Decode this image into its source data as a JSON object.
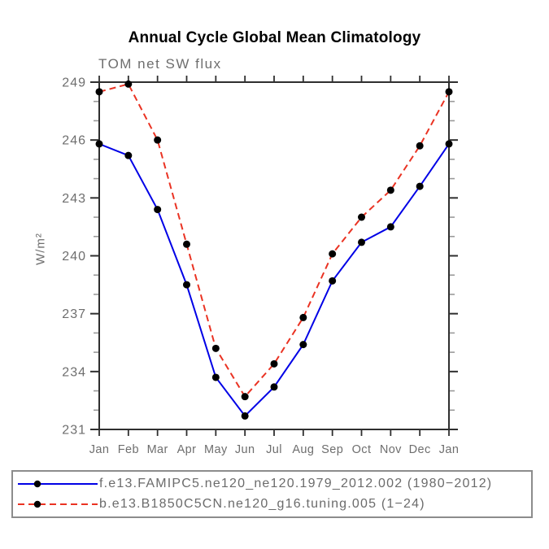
{
  "chart_data": {
    "type": "line",
    "title": "Annual Cycle Global Mean Climatology",
    "subtitle": "TOM net SW flux",
    "ylabel": "W/m²",
    "xlabel": "",
    "categories": [
      "Jan",
      "Feb",
      "Mar",
      "Apr",
      "May",
      "Jun",
      "Jul",
      "Aug",
      "Sep",
      "Oct",
      "Nov",
      "Dec",
      "Jan"
    ],
    "ylim": [
      231,
      249
    ],
    "ytick_major_step": 3,
    "ytick_minor_step": 1,
    "grid": false,
    "legend_position": "bottom",
    "marker_color": "#000000",
    "axis_color": "#2f2f2f",
    "minor_tick_color": "#9a9a9a",
    "label_color": "#6e6e6e",
    "series": [
      {
        "name": "f.e13.FAMIPC5.ne120_ne120.1979_2012.002 (1980−2012)",
        "color": "#0000e6",
        "style": "solid",
        "marker": "black-dot",
        "values": [
          245.8,
          245.2,
          242.4,
          238.5,
          233.7,
          231.7,
          233.2,
          235.4,
          238.7,
          240.7,
          241.5,
          243.6,
          245.8
        ]
      },
      {
        "name": "b.e13.B1850C5CN.ne120_g16.tuning.005 (1−24)",
        "color": "#ea3323",
        "style": "dashed",
        "marker": "black-dot",
        "values": [
          248.5,
          248.9,
          246.0,
          240.6,
          235.2,
          232.7,
          234.4,
          236.8,
          240.1,
          242.0,
          243.4,
          245.7,
          248.5
        ]
      }
    ]
  }
}
